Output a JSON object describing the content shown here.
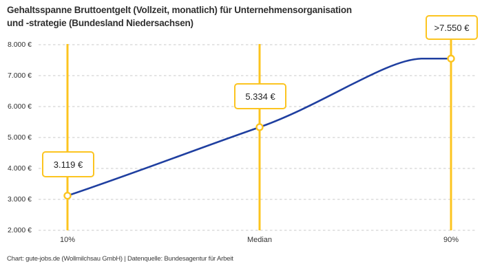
{
  "title_line1": "Gehaltsspanne Bruttoentgelt (Vollzeit, monatlich) für Unternehmensorganisation",
  "title_line2": "und -strategie (Bundesland Niedersachsen)",
  "footer": "Chart: gute-jobs.de (Wollmilchsau GmbH) | Datenquelle: Bundesagentur für Arbeit",
  "colors": {
    "accent_yellow": "#FCC41F",
    "line_blue": "#1F3FA0",
    "grid_gray": "#C9C9C9",
    "title_text": "#2F2F2F"
  },
  "chart_data": {
    "type": "line",
    "title": "Gehaltsspanne Bruttoentgelt (Vollzeit, monatlich) für Unternehmensorganisation und -strategie (Bundesland Niedersachsen)",
    "x_labels": [
      "10%",
      "Median",
      "90%"
    ],
    "values_eur": [
      3119,
      5334,
      7550
    ],
    "value_labels": [
      "3.119 €",
      "5.334 €",
      ">7.550 €"
    ],
    "y_ticks": [
      2000,
      3000,
      4000,
      5000,
      6000,
      7000,
      8000
    ],
    "y_tick_labels": [
      "2.000 €",
      "3.000 €",
      "4.000 €",
      "5.000 €",
      "6.000 €",
      "7.000 €",
      "8.000 €"
    ],
    "ylim": [
      2000,
      8000
    ],
    "grid": "horizontal-dashed",
    "legend": "none"
  }
}
